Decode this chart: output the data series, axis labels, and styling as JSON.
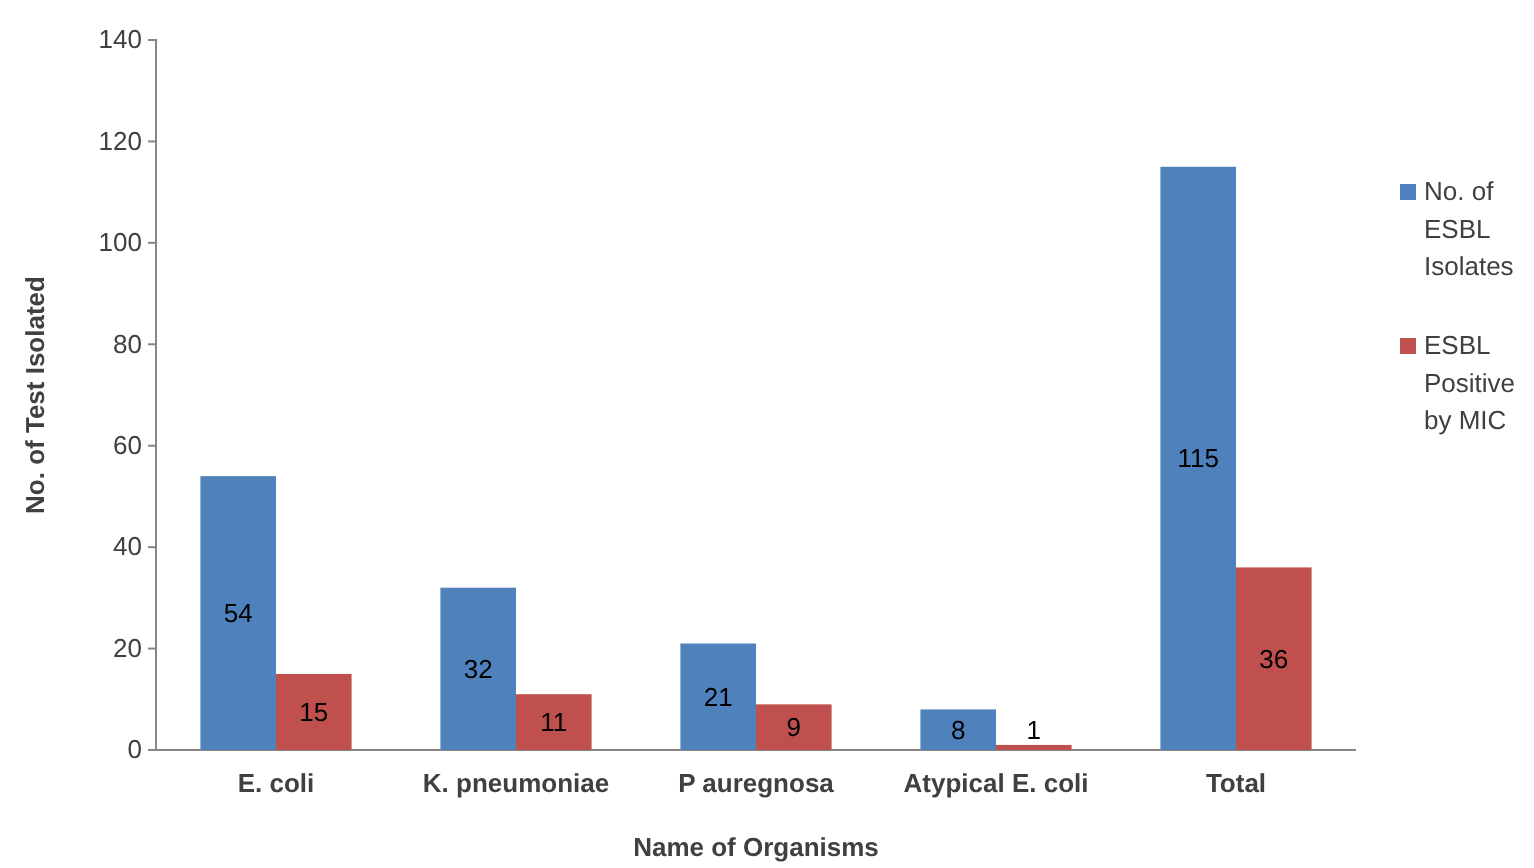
{
  "chart_data": {
    "type": "bar",
    "xlabel": "Name of Organisms",
    "ylabel": "No. of Test Isolated",
    "categories": [
      "E. coli",
      "K. pneumoniae",
      "P auregnosa",
      "Atypical E. coli",
      "Total"
    ],
    "series": [
      {
        "name": "No. of ESBL Isolates",
        "color": "#4f81bd",
        "values": [
          54,
          32,
          21,
          8,
          115
        ]
      },
      {
        "name": "ESBL Positive by MIC",
        "color": "#c0504d",
        "values": [
          15,
          11,
          9,
          1,
          36
        ]
      }
    ],
    "ylim": [
      0,
      140
    ],
    "yticks": [
      0,
      20,
      40,
      60,
      80,
      100,
      120,
      140
    ],
    "grid": false,
    "legend": "right",
    "data_labels": true
  }
}
